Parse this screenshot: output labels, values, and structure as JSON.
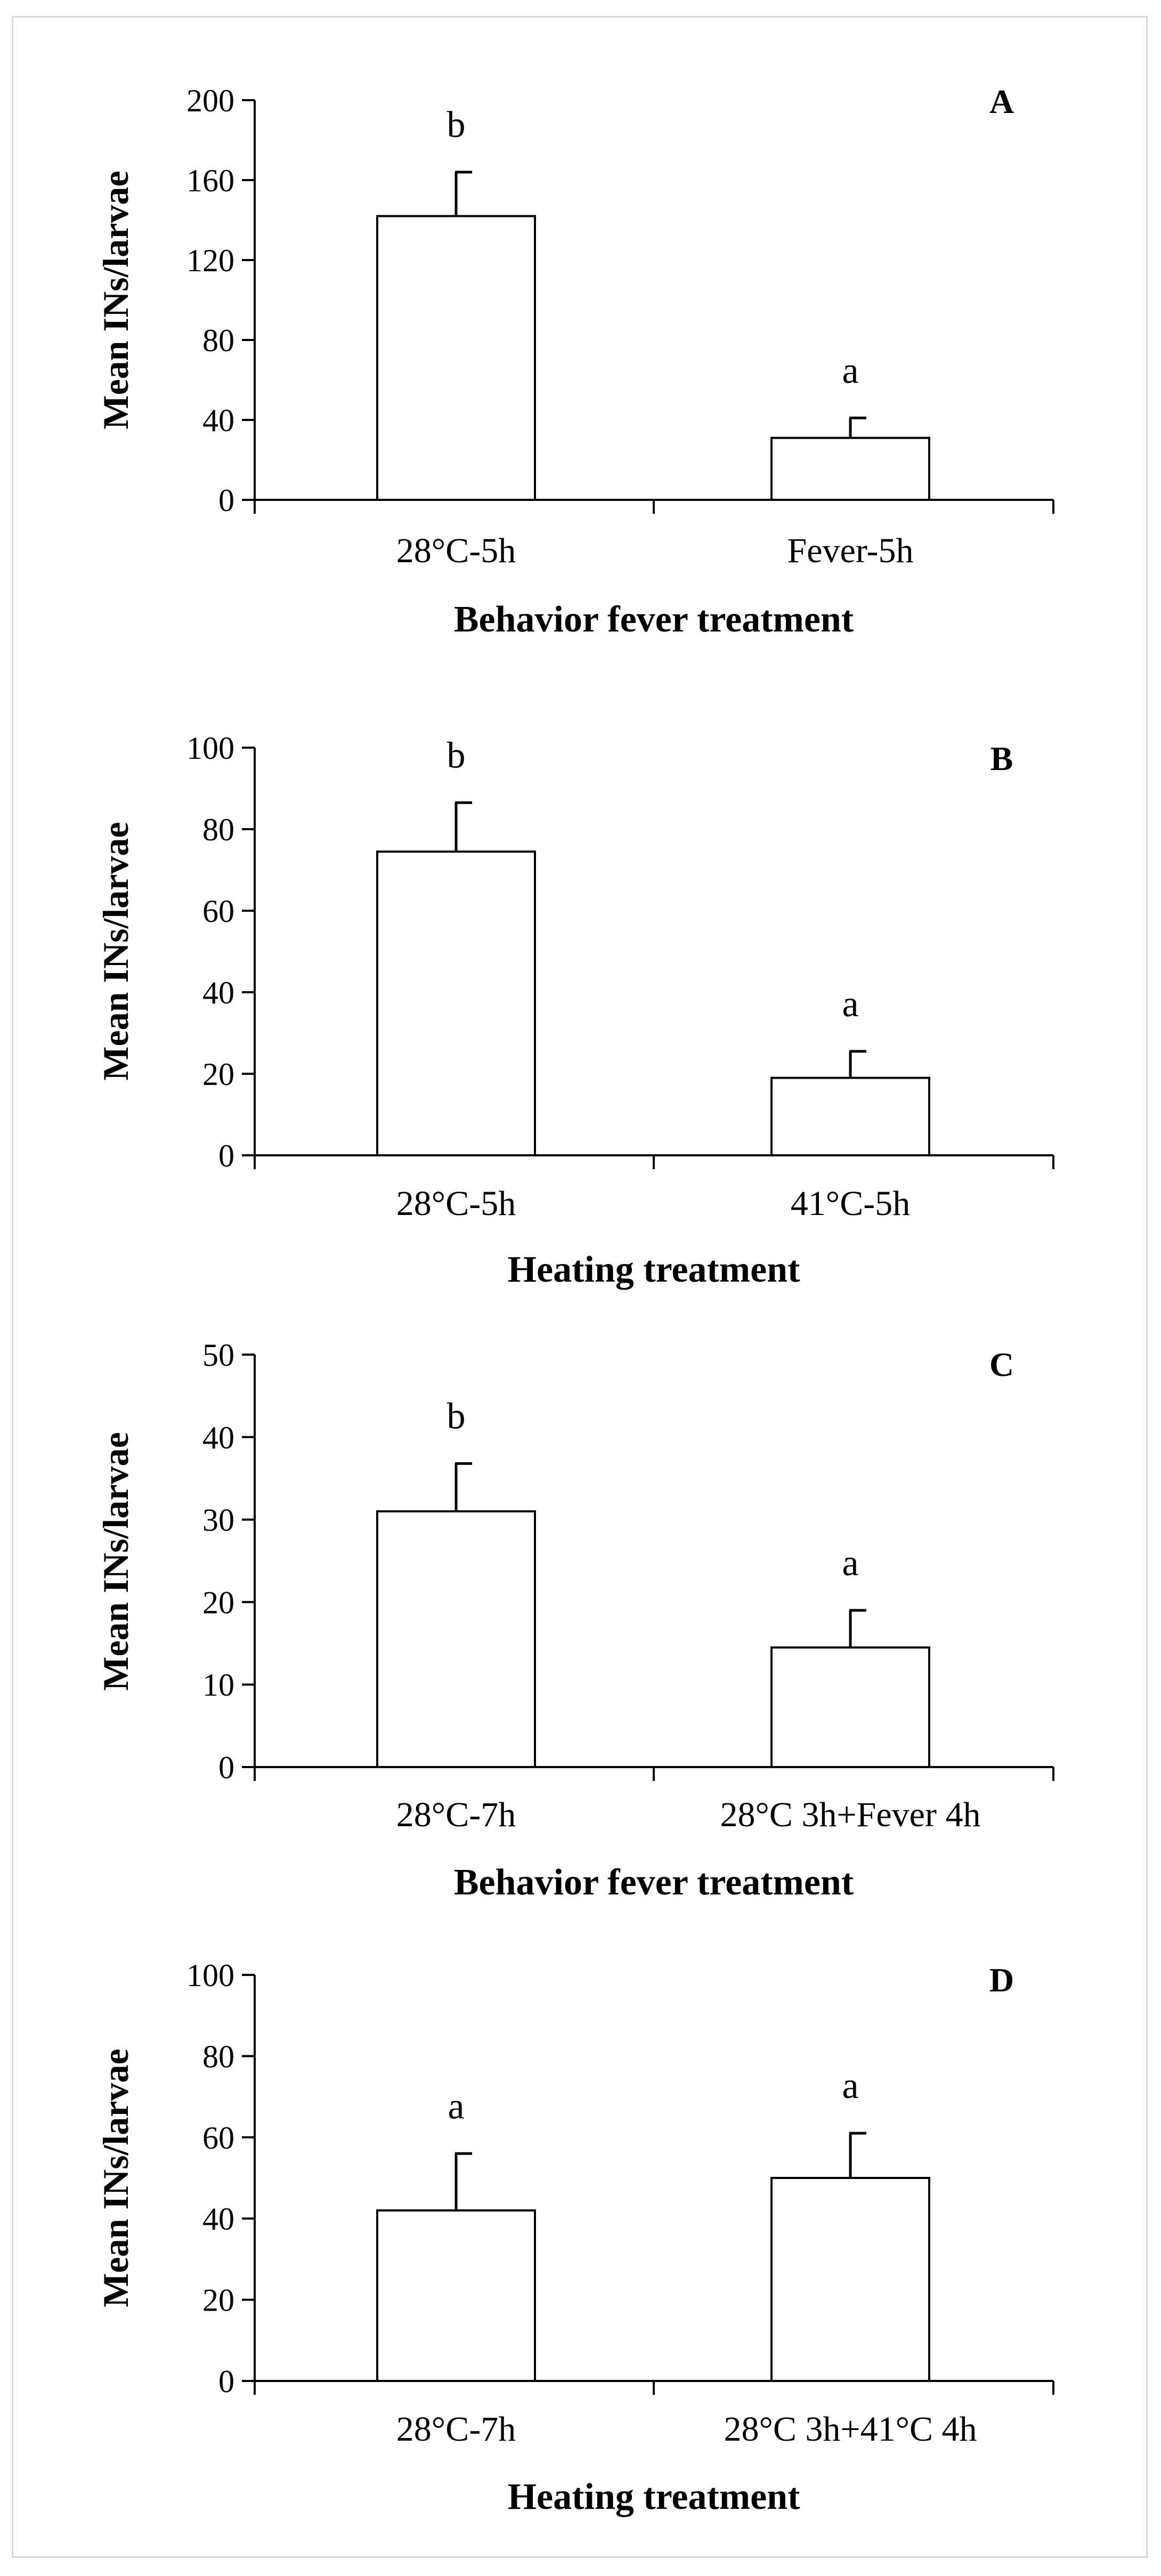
{
  "chart_data": [
    {
      "type": "bar",
      "panel_label": "A",
      "categories": [
        "28°C-5h",
        "Fever-5h"
      ],
      "values": [
        142,
        31
      ],
      "errors": [
        22,
        10
      ],
      "significance": [
        "b",
        "a"
      ],
      "ylabel": "Mean INs/larvae",
      "xlabel": "Behavior fever treatment",
      "ylim": [
        0,
        200
      ],
      "yticks": [
        0,
        40,
        80,
        120,
        160,
        200
      ],
      "ytick_labels": [
        "0",
        "40",
        "80",
        "120",
        "160",
        "200"
      ]
    },
    {
      "type": "bar",
      "panel_label": "B",
      "categories": [
        "28°C-5h",
        "41°C-5h"
      ],
      "values": [
        74.5,
        19
      ],
      "errors": [
        12,
        6.5
      ],
      "significance": [
        "b",
        "a"
      ],
      "ylabel": "Mean INs/larvae",
      "xlabel": "Heating treatment",
      "ylim": [
        0,
        100
      ],
      "yticks": [
        0,
        20,
        40,
        60,
        80,
        100
      ],
      "ytick_labels": [
        "0",
        "20",
        "40",
        "60",
        "80",
        "100"
      ]
    },
    {
      "type": "bar",
      "panel_label": "C",
      "categories": [
        "28°C-7h",
        "28°C 3h+Fever 4h"
      ],
      "values": [
        31,
        14.5
      ],
      "errors": [
        5.8,
        4.5
      ],
      "significance": [
        "b",
        "a"
      ],
      "ylabel": "Mean INs/larvae",
      "xlabel": "Behavior fever treatment",
      "ylim": [
        0,
        50
      ],
      "yticks": [
        0,
        10,
        20,
        30,
        40,
        50
      ],
      "ytick_labels": [
        "0",
        "10",
        "20",
        "30",
        "40",
        "50"
      ]
    },
    {
      "type": "bar",
      "panel_label": "D",
      "categories": [
        "28°C-7h",
        "28°C 3h+41°C 4h"
      ],
      "values": [
        42,
        50
      ],
      "errors": [
        14,
        11
      ],
      "significance": [
        "a",
        "a"
      ],
      "ylabel": "Mean INs/larvae",
      "xlabel": "Heating treatment",
      "ylim": [
        0,
        100
      ],
      "yticks": [
        0,
        20,
        40,
        60,
        80,
        100
      ],
      "ytick_labels": [
        "0",
        "20",
        "40",
        "60",
        "80",
        "100"
      ]
    }
  ]
}
